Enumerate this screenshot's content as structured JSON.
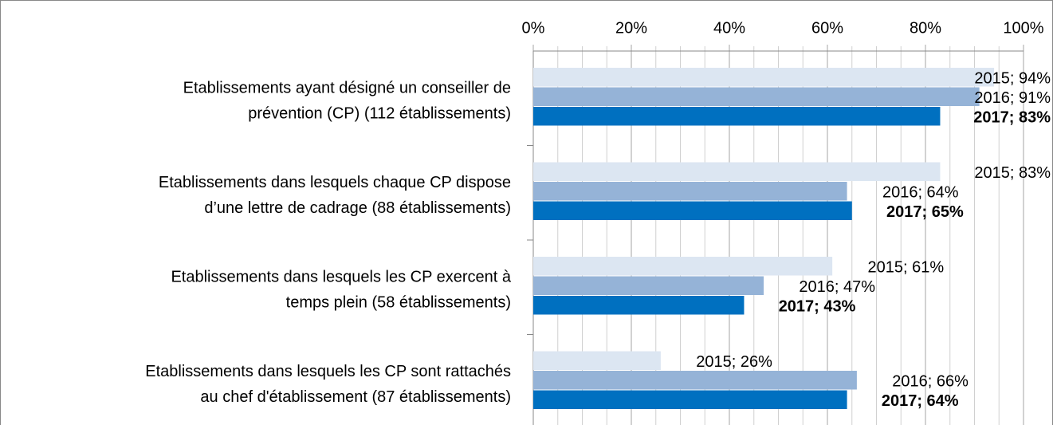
{
  "chart_data": {
    "type": "hbar",
    "categories": [
      [
        "Etablissements ayant désigné un conseiller de",
        "prévention (CP) (112 établissements)"
      ],
      [
        "Etablissements dans lesquels chaque CP dispose",
        "d’une lettre de cadrage (88 établissements)"
      ],
      [
        "Etablissements dans lesquels les CP exercent à",
        "temps plein (58 établissements)"
      ],
      [
        "Etablissements dans lesquels les CP sont rattachés",
        "au chef d'établissement (87 établissements)"
      ]
    ],
    "series": [
      {
        "color": "#dce6f2",
        "values": [
          94,
          83,
          61,
          26
        ],
        "value_labels": [
          "2015; 94%",
          "2015; 83%",
          "2015; 61%",
          "2015; 26%"
        ]
      },
      {
        "color": "#95b3d7",
        "values": [
          91,
          64,
          47,
          66
        ],
        "value_labels": [
          "2016; 91%",
          "2016; 64%",
          "2016; 47%",
          "2016; 66%"
        ]
      },
      {
        "color": "#0070c0",
        "values": [
          83,
          65,
          43,
          64
        ],
        "value_labels": [
          "2017; 83%",
          "2017; 65%",
          "2017; 43%",
          "2017; 64%"
        ],
        "bold_labels": true
      }
    ],
    "xlim": [
      0,
      100
    ],
    "xticks": [
      {
        "value": 0,
        "label": "0%"
      },
      {
        "value": 20,
        "label": "20%"
      },
      {
        "value": 40,
        "label": "40%"
      },
      {
        "value": 60,
        "label": "60%"
      },
      {
        "value": 80,
        "label": "80%"
      },
      {
        "value": 100,
        "label": "100%"
      }
    ],
    "grid": true
  }
}
